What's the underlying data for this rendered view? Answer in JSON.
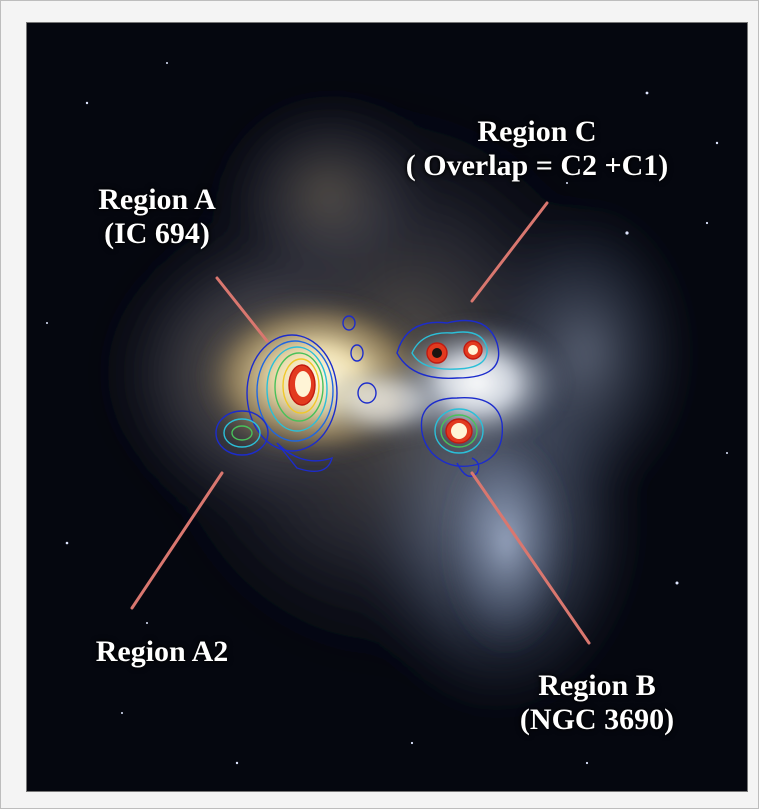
{
  "annotations": {
    "region_a": {
      "line1": "Region A",
      "line2": "(IC 694)"
    },
    "region_a2": {
      "line1": "Region A2"
    },
    "region_b": {
      "line1": "Region B",
      "line2": "(NGC 3690)"
    },
    "region_c": {
      "line1": "Region C",
      "line2": "( Overlap = C2 +C1)"
    }
  },
  "colors": {
    "pointer_line": "#d9776f",
    "label_text": "#ffffff",
    "sky": "#05070f"
  }
}
